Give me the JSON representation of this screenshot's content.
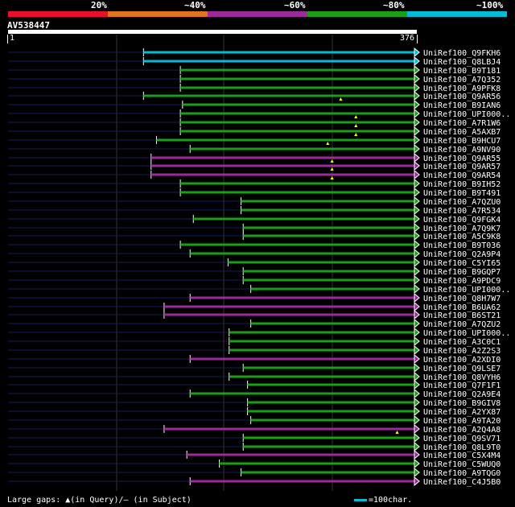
{
  "legend": {
    "labels": [
      "20%",
      "~40%",
      "~60%",
      "~80%",
      "~100%"
    ],
    "colors": [
      "#e8102a",
      "#e0731b",
      "#9c2a9c",
      "#1a9e1a",
      "#00bcd4"
    ]
  },
  "query": {
    "name": "AV538447",
    "start": "1",
    "end": "376"
  },
  "chart_data": {
    "type": "alignment",
    "query_length": 376,
    "hits": [
      {
        "label": "UniRef100_Q9FKH6",
        "start": 126,
        "color": "cyan",
        "markers": []
      },
      {
        "label": "UniRef100_Q8LBJ4",
        "start": 126,
        "color": "cyan",
        "markers": []
      },
      {
        "label": "UniRef100_B9T181",
        "start": 160,
        "color": "green",
        "markers": []
      },
      {
        "label": "UniRef100_A7Q352",
        "start": 160,
        "color": "green",
        "markers": []
      },
      {
        "label": "UniRef100_A9PFK8",
        "start": 160,
        "color": "green",
        "markers": []
      },
      {
        "label": "UniRef100_Q9AR56",
        "start": 126,
        "color": "green",
        "markers": [
          308
        ]
      },
      {
        "label": "UniRef100_B9IAN6",
        "start": 162,
        "color": "green",
        "markers": []
      },
      {
        "label": "UniRef100_UPI000..",
        "start": 160,
        "color": "green",
        "markers": [
          322
        ]
      },
      {
        "label": "UniRef100_A7R1W6",
        "start": 160,
        "color": "green",
        "markers": [
          322
        ]
      },
      {
        "label": "UniRef100_A5AXB7",
        "start": 160,
        "color": "green",
        "markers": [
          322
        ]
      },
      {
        "label": "UniRef100_B9HCU7",
        "start": 138,
        "color": "green",
        "markers": [
          296
        ]
      },
      {
        "label": "UniRef100_A9NV90",
        "start": 169,
        "color": "green",
        "markers": []
      },
      {
        "label": "UniRef100_Q9AR55",
        "start": 133,
        "color": "magenta",
        "markers": [
          300
        ]
      },
      {
        "label": "UniRef100_Q9AR57",
        "start": 133,
        "color": "magenta",
        "markers": [
          300
        ]
      },
      {
        "label": "UniRef100_Q9AR54",
        "start": 133,
        "color": "magenta",
        "markers": [
          300
        ]
      },
      {
        "label": "UniRef100_B9IH52",
        "start": 160,
        "color": "green",
        "markers": []
      },
      {
        "label": "UniRef100_B9T491",
        "start": 160,
        "color": "green",
        "markers": []
      },
      {
        "label": "UniRef100_A7QZU0",
        "start": 216,
        "color": "green",
        "markers": []
      },
      {
        "label": "UniRef100_A7R534",
        "start": 216,
        "color": "green",
        "markers": []
      },
      {
        "label": "UniRef100_Q9FGK4",
        "start": 172,
        "color": "green",
        "markers": []
      },
      {
        "label": "UniRef100_A7Q9K7",
        "start": 218,
        "color": "green",
        "markers": []
      },
      {
        "label": "UniRef100_A5C9K8",
        "start": 218,
        "color": "green",
        "markers": []
      },
      {
        "label": "UniRef100_B9T036",
        "start": 160,
        "color": "green",
        "markers": []
      },
      {
        "label": "UniRef100_Q2A9P4",
        "start": 169,
        "color": "green",
        "markers": []
      },
      {
        "label": "UniRef100_C5YI65",
        "start": 204,
        "color": "green",
        "markers": []
      },
      {
        "label": "UniRef100_B9GQP7",
        "start": 218,
        "color": "green",
        "markers": []
      },
      {
        "label": "UniRef100_A9PDC9",
        "start": 218,
        "color": "green",
        "markers": []
      },
      {
        "label": "UniRef100_UPI000..",
        "start": 225,
        "color": "green",
        "markers": []
      },
      {
        "label": "UniRef100_Q8H7W7",
        "start": 169,
        "color": "magenta",
        "markers": []
      },
      {
        "label": "UniRef100_B6UA62",
        "start": 145,
        "color": "magenta",
        "markers": []
      },
      {
        "label": "UniRef100_B6ST21",
        "start": 145,
        "color": "magenta",
        "markers": []
      },
      {
        "label": "UniRef100_A7QZU2",
        "start": 225,
        "color": "green",
        "markers": []
      },
      {
        "label": "UniRef100_UPI000..",
        "start": 205,
        "color": "green",
        "markers": []
      },
      {
        "label": "UniRef100_A3C0C1",
        "start": 205,
        "color": "green",
        "markers": []
      },
      {
        "label": "UniRef100_A2Z2S3",
        "start": 205,
        "color": "green",
        "markers": []
      },
      {
        "label": "UniRef100_A2XDI0",
        "start": 169,
        "color": "magenta",
        "markers": []
      },
      {
        "label": "UniRef100_Q9LSE7",
        "start": 218,
        "color": "green",
        "markers": []
      },
      {
        "label": "UniRef100_Q8VYH6",
        "start": 205,
        "color": "green",
        "markers": []
      },
      {
        "label": "UniRef100_Q7F1F1",
        "start": 222,
        "color": "green",
        "markers": []
      },
      {
        "label": "UniRef100_Q2A9E4",
        "start": 169,
        "color": "green",
        "markers": []
      },
      {
        "label": "UniRef100_B9GIV8",
        "start": 222,
        "color": "green",
        "markers": []
      },
      {
        "label": "UniRef100_A2YX87",
        "start": 222,
        "color": "green",
        "markers": []
      },
      {
        "label": "UniRef100_A9TA20",
        "start": 225,
        "color": "green",
        "markers": []
      },
      {
        "label": "UniRef100_A2Q4A8",
        "start": 145,
        "color": "magenta",
        "markers": [
          360
        ]
      },
      {
        "label": "UniRef100_Q9SV71",
        "start": 218,
        "color": "green",
        "markers": []
      },
      {
        "label": "UniRef100_Q8L9T0",
        "start": 218,
        "color": "green",
        "markers": []
      },
      {
        "label": "UniRef100_C5X4M4",
        "start": 166,
        "color": "magenta",
        "markers": []
      },
      {
        "label": "UniRef100_C5WUQ0",
        "start": 196,
        "color": "green",
        "markers": []
      },
      {
        "label": "UniRef100_A9TQG0",
        "start": 216,
        "color": "green",
        "markers": []
      },
      {
        "label": "UniRef100_C4J5B0",
        "start": 169,
        "color": "magenta",
        "markers": []
      }
    ]
  },
  "footer": {
    "text": "Large gaps: ▲(in Query)/– (in Subject)",
    "scale": "=100char."
  }
}
